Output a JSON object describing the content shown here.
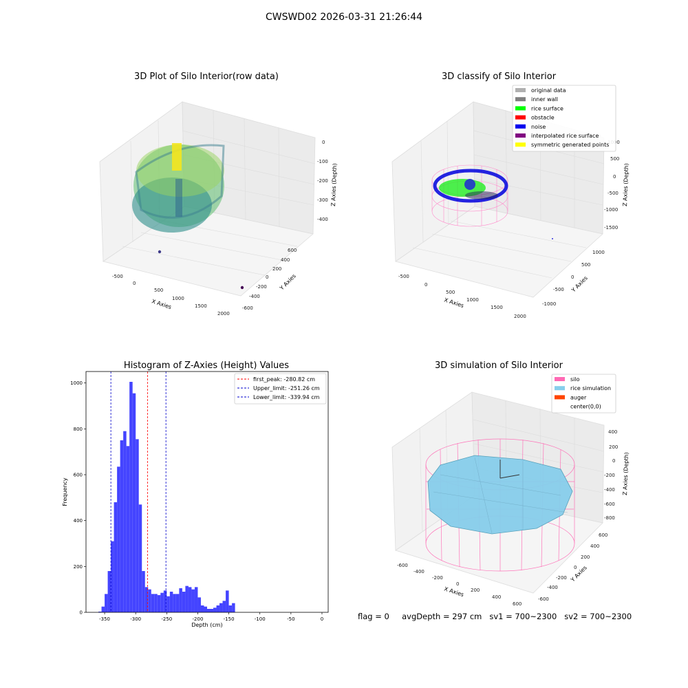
{
  "suptitle": "CWSWD02 2026-03-31 21:26:44",
  "panel1": {
    "title": "3D Plot of Silo Interior(row data)",
    "xlabel": "X Axies",
    "ylabel": "Y Axies",
    "zlabel": "Z Axies (Depth)",
    "xticks": [
      "-500",
      "0",
      "500",
      "1000",
      "1500",
      "2000"
    ],
    "yticks": [
      "600",
      "400",
      "200",
      "0",
      "-200",
      "-400",
      "-600"
    ],
    "zticks": [
      "0",
      "-100",
      "-200",
      "-300",
      "-400"
    ]
  },
  "panel2": {
    "title": "3D classify of Silo Interior",
    "xlabel": "X Axies",
    "ylabel": "Y Axies",
    "zlabel": "Z Axies (Depth)",
    "xticks": [
      "-500",
      "0",
      "500",
      "1000",
      "1500",
      "2000"
    ],
    "yticks": [
      "1000",
      "500",
      "0",
      "-500",
      "-1000"
    ],
    "zticks": [
      "1000",
      "500",
      "0",
      "-500",
      "-1000",
      "-1500"
    ],
    "legend": [
      {
        "label": "original data",
        "color": "#b0b0b0"
      },
      {
        "label": "inner wall",
        "color": "#808080"
      },
      {
        "label": "rice surface",
        "color": "#00ff00"
      },
      {
        "label": "obstacle",
        "color": "#ff0000"
      },
      {
        "label": "noise",
        "color": "#0000ee"
      },
      {
        "label": "interpolated rice surface",
        "color": "#800080"
      },
      {
        "label": "symmetric generated points",
        "color": "#ffff00"
      }
    ]
  },
  "panel3": {
    "title": "Histogram of Z-Axies (Height) Values",
    "legend": [
      {
        "label": "first_peak: -280.82 cm",
        "color": "#ff0000"
      },
      {
        "label": "Upper_limit: -251.26 cm",
        "color": "#0000cc"
      },
      {
        "label": "Lower_limit: -339.94 cm",
        "color": "#0000cc"
      }
    ]
  },
  "panel4": {
    "title": "3D simulation of Silo Interior",
    "xlabel": "X Axies",
    "ylabel": "Y Axies",
    "zlabel": "Z Axies (Depth)",
    "xticks": [
      "-600",
      "-400",
      "-200",
      "0",
      "200",
      "400",
      "600"
    ],
    "yticks": [
      "600",
      "400",
      "200",
      "0",
      "-200",
      "-400",
      "-600"
    ],
    "zticks": [
      "400",
      "200",
      "0",
      "-200",
      "-400",
      "-600",
      "-800"
    ],
    "legend": [
      {
        "label": "silo",
        "color": "#ff69b4"
      },
      {
        "label": "rice simulation",
        "color": "#87ceeb"
      },
      {
        "label": "auger",
        "color": "#ff4500"
      },
      {
        "label": "center(0,0)",
        "color": "#ffffff"
      }
    ]
  },
  "status": {
    "text": "flag = 0     avgDepth = 297 cm   sv1 = 700~2300   sv2 = 700~2300"
  },
  "chart_data": {
    "type": "bar",
    "title": "Histogram of Z-Axies (Height) Values",
    "xlabel": "Depth (cm)",
    "ylabel": "Frequency",
    "xlim": [
      -380,
      10
    ],
    "ylim": [
      0,
      1050
    ],
    "xticks": [
      -350,
      -300,
      -250,
      -200,
      -150,
      -100,
      -50,
      0
    ],
    "yticks": [
      0,
      200,
      400,
      600,
      800,
      1000
    ],
    "bin_start": -360,
    "bin_width": 5,
    "values": [
      3,
      25,
      80,
      180,
      310,
      480,
      635,
      750,
      790,
      725,
      1005,
      955,
      755,
      470,
      180,
      110,
      100,
      80,
      80,
      75,
      85,
      95,
      70,
      90,
      80,
      80,
      105,
      90,
      115,
      110,
      100,
      110,
      65,
      30,
      25,
      15,
      15,
      20,
      30,
      40,
      50,
      95,
      30,
      40
    ],
    "lines": [
      {
        "x": -280.82,
        "color": "#ff0000"
      },
      {
        "x": -251.26,
        "color": "#0000cc"
      },
      {
        "x": -339.94,
        "color": "#0000cc"
      }
    ]
  }
}
